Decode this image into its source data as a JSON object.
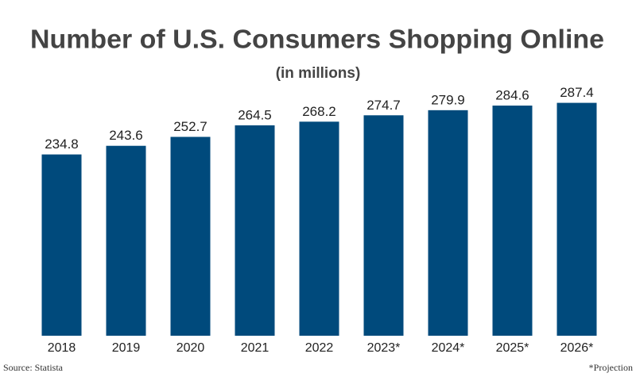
{
  "chart_data": {
    "type": "bar",
    "title": "Number of U.S. Consumers Shopping Online",
    "subtitle": "(in millions)",
    "categories": [
      "2018",
      "2019",
      "2020",
      "2021",
      "2022",
      "2023*",
      "2024*",
      "2025*",
      "2026*"
    ],
    "values": [
      234.8,
      243.6,
      252.7,
      264.5,
      268.2,
      274.7,
      279.9,
      284.6,
      287.4
    ],
    "color": "#004a7c",
    "ylim": [
      50,
      300
    ],
    "source": "Source: Statista",
    "footnote": "*Projection"
  }
}
